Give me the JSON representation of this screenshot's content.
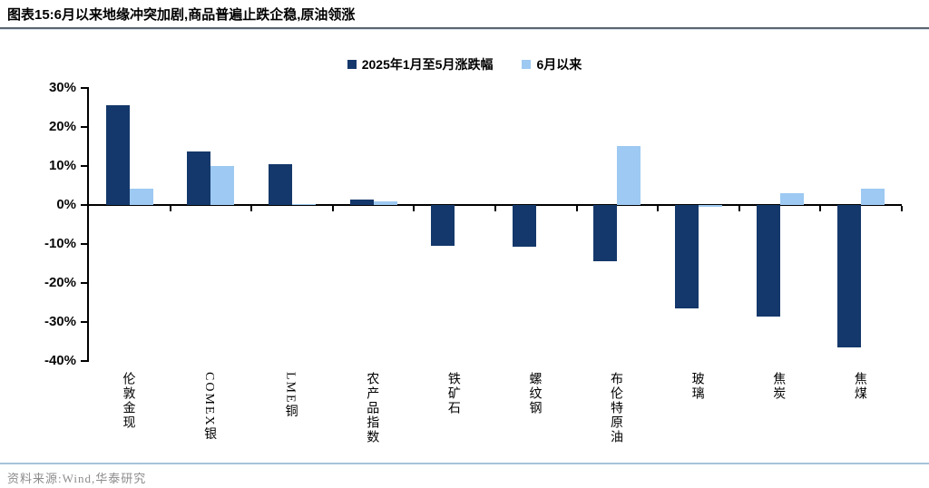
{
  "header": {
    "title": "图表15:6月以来地缘冲突加剧,商品普遍止跌企稳,原油领涨"
  },
  "footer": {
    "source": "资料来源:Wind,华泰研究"
  },
  "colors": {
    "series_dark": "#14386B",
    "series_light": "#9DC9F2",
    "axis": "#000000",
    "separator_top": "#5A6570",
    "separator_bottom": "#A6C2DB",
    "source_text": "#8C8C8C"
  },
  "chart_data": {
    "type": "bar",
    "title": "图表15:6月以来地缘冲突加剧,商品普遍止跌企稳,原油领涨",
    "categories": [
      "伦敦金现",
      "COMEX银",
      "LME铜",
      "农产品指数",
      "铁矿石",
      "螺纹钢",
      "布伦特原油",
      "玻璃",
      "焦炭",
      "焦煤"
    ],
    "series": [
      {
        "name": "2025年1月至5月涨跌幅",
        "color": "#14386B",
        "values": [
          25.5,
          13.8,
          10.4,
          1.5,
          -10.4,
          -10.7,
          -14.5,
          -26.4,
          -28.5,
          -36.5
        ]
      },
      {
        "name": "6月以来",
        "color": "#9DC9F2",
        "values": [
          4.3,
          10.0,
          0.2,
          1.0,
          0,
          0,
          15.1,
          -0.5,
          3.0,
          4.2
        ]
      }
    ],
    "xlabel": "",
    "ylabel": "",
    "ylim": [
      -40,
      30
    ],
    "yticks": [
      "30%",
      "20%",
      "10%",
      "0%",
      "-10%",
      "-20%",
      "-30%",
      "-40%"
    ],
    "grid": false,
    "legend_position": "top-center",
    "unit": "percent"
  }
}
